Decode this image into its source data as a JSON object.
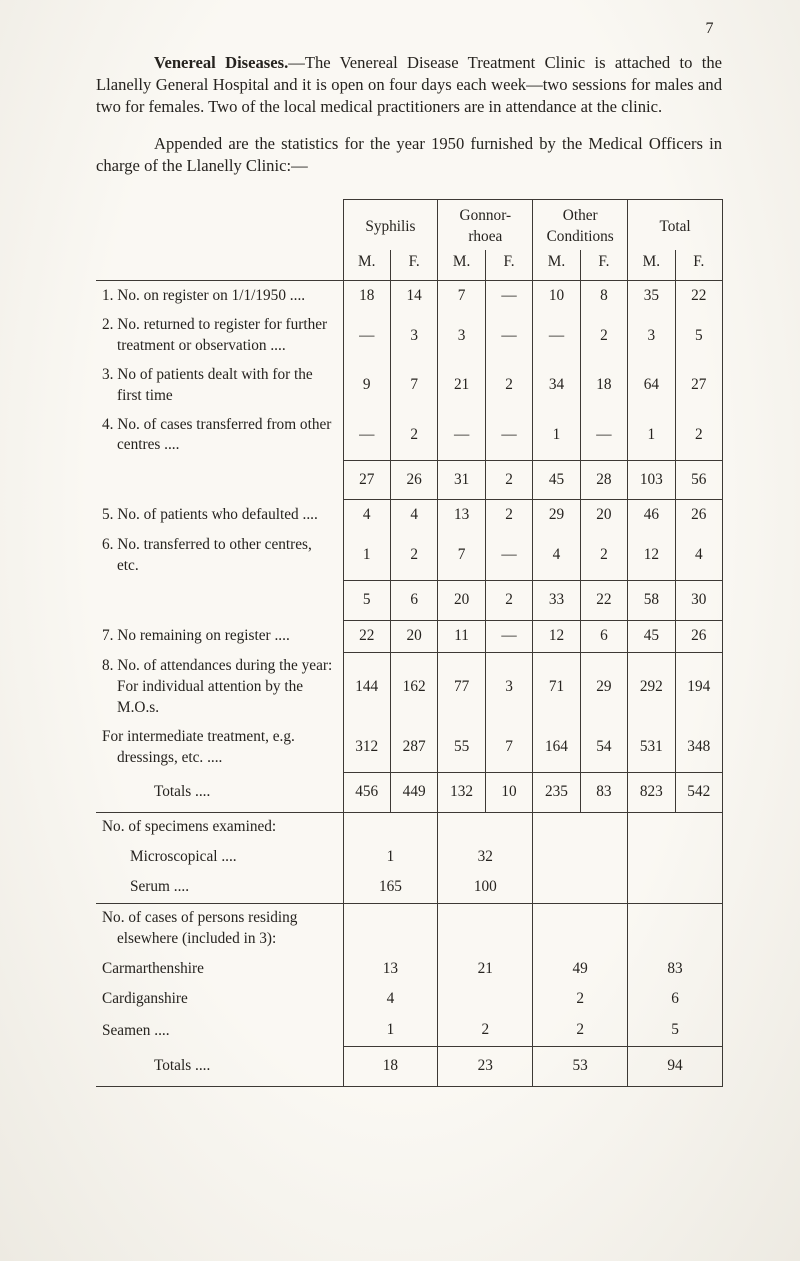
{
  "page_number": "7",
  "intro": {
    "heading": "Venereal Diseases.",
    "para1": "—The Venereal Disease Treatment Clinic is attached to the Llanelly General Hospital and it is open on four days each week—two sessions for males and two for females. Two of the local medical practitioners are in attendance at the clinic.",
    "para2": "Appended are the statistics for the year 1950 furnished by the Medical Officers in charge of the Llanelly Clinic:—"
  },
  "table": {
    "group_headers": [
      "Syphilis",
      "Gonnor-\nrhoea",
      "Other\nConditions",
      "Total"
    ],
    "sex_headers": [
      "M.",
      "F.",
      "M.",
      "F.",
      "M.",
      "F.",
      "M.",
      "F."
    ],
    "rows": [
      {
        "label": "1. No. on register on 1/1/1950 ....",
        "values": [
          "18",
          "14",
          "7",
          "—",
          "10",
          "8",
          "35",
          "22"
        ]
      },
      {
        "label": "2. No. returned to register for further treatment or observation ....",
        "values": [
          "—",
          "3",
          "3",
          "—",
          "—",
          "2",
          "3",
          "5"
        ]
      },
      {
        "label": "3. No of patients dealt with for the first time",
        "values": [
          "9",
          "7",
          "21",
          "2",
          "34",
          "18",
          "64",
          "27"
        ]
      },
      {
        "label": "4. No. of cases transferred from other centres ....",
        "values": [
          "—",
          "2",
          "—",
          "—",
          "1",
          "—",
          "1",
          "2"
        ]
      },
      {
        "label": "",
        "values": [
          "27",
          "26",
          "31",
          "2",
          "45",
          "28",
          "103",
          "56"
        ]
      },
      {
        "label": "5. No. of patients who defaulted ....",
        "values": [
          "4",
          "4",
          "13",
          "2",
          "29",
          "20",
          "46",
          "26"
        ]
      },
      {
        "label": "6. No. transferred to other centres, etc.",
        "values": [
          "1",
          "2",
          "7",
          "—",
          "4",
          "2",
          "12",
          "4"
        ]
      },
      {
        "label": "",
        "values": [
          "5",
          "6",
          "20",
          "2",
          "33",
          "22",
          "58",
          "30"
        ]
      },
      {
        "label": "7. No remaining on register ....",
        "values": [
          "22",
          "20",
          "11",
          "—",
          "12",
          "6",
          "45",
          "26"
        ]
      },
      {
        "label": "8. No. of attendances during the year: For individual attention by the M.O.s.",
        "values": [
          "144",
          "162",
          "77",
          "3",
          "71",
          "29",
          "292",
          "194"
        ]
      },
      {
        "label": "For intermediate treatment, e.g. dressings, etc. ....",
        "values": [
          "312",
          "287",
          "55",
          "7",
          "164",
          "54",
          "531",
          "348"
        ]
      },
      {
        "label": "Totals ....",
        "values": [
          "456",
          "449",
          "132",
          "10",
          "235",
          "83",
          "823",
          "542"
        ]
      }
    ],
    "specimens": {
      "heading": "No. of specimens examined:",
      "rows": [
        {
          "label": "Microscopical ....",
          "syphilis": "1",
          "gonorrhoea": "32"
        },
        {
          "label": "Serum ....",
          "syphilis": "165",
          "gonorrhoea": "100"
        }
      ]
    },
    "elsewhere": {
      "heading": "No. of cases of persons residing elsewhere (included in 3):",
      "rows": [
        {
          "label": "Carmarthenshire",
          "values": [
            "13",
            "21",
            "49",
            "83"
          ]
        },
        {
          "label": "Cardiganshire",
          "values": [
            "4",
            "",
            "2",
            "6"
          ]
        },
        {
          "label": "Seamen ....",
          "values": [
            "1",
            "2",
            "2",
            "5"
          ]
        }
      ],
      "totals": {
        "label": "Totals ....",
        "values": [
          "18",
          "23",
          "53",
          "94"
        ]
      }
    }
  }
}
